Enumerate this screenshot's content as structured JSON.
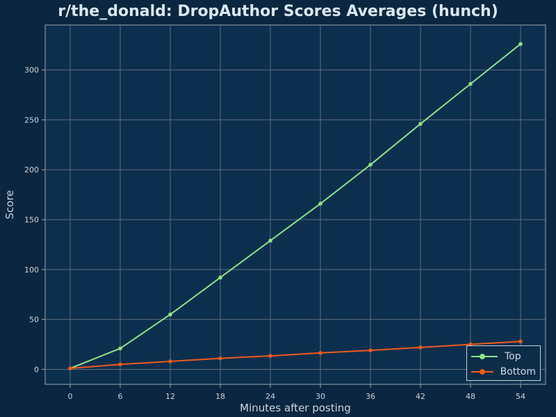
{
  "chart_data": {
    "type": "line",
    "title": "r/the_donald: DropAuthor Scores Averages (hunch)",
    "xlabel": "Minutes after posting",
    "ylabel": "Score",
    "x": [
      0,
      6,
      12,
      18,
      24,
      30,
      36,
      42,
      48,
      54
    ],
    "xlim": [
      -3,
      57
    ],
    "ylim": [
      -15,
      345
    ],
    "xticks": [
      0,
      6,
      12,
      18,
      24,
      30,
      36,
      42,
      48,
      54
    ],
    "yticks": [
      0,
      50,
      100,
      150,
      200,
      250,
      300
    ],
    "grid": true,
    "legend_position": "bottom-right",
    "series": [
      {
        "name": "Top",
        "color": "#8fe38a",
        "values": [
          1,
          21,
          55,
          92,
          129,
          166,
          205,
          246,
          286,
          326
        ]
      },
      {
        "name": "Bottom",
        "color": "#f05a1e",
        "values": [
          1,
          5,
          8,
          11,
          13.5,
          16.5,
          19,
          22,
          25,
          28
        ]
      }
    ]
  },
  "colors": {
    "background": "#0b2640",
    "plot_area": "#0d2f4e",
    "grid": "#5f6f7d",
    "axis_text": "#c8d6e0"
  }
}
